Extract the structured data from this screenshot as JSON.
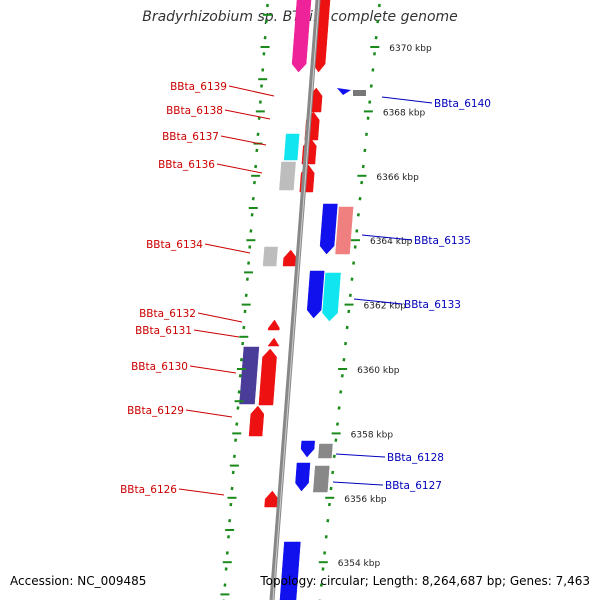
{
  "title": "Bradyrhizobium sp. BTAi1, complete genome",
  "accession": "Accession: NC_009485",
  "summary": "Topology: circular; Length: 8,264,687 bp; Genes: 7,463",
  "colors": {
    "axis": "#888888",
    "tick": "#1a8a1a",
    "red": "#ee1111",
    "magenta": "#ee2299",
    "cyan": "#11e6f0",
    "blue": "#1111ee",
    "gray": "#888888",
    "lightgray": "#bdbdbd",
    "navy": "#4a3d99",
    "pink": "#f08080",
    "label_red": "#cc0000",
    "label_blue": "#0000bb"
  },
  "scale_labels": [
    {
      "text": "6370 kbp",
      "kbp": 6370
    },
    {
      "text": "6368 kbp",
      "kbp": 6368
    },
    {
      "text": "6366 kbp",
      "kbp": 6366
    },
    {
      "text": "6364 kbp",
      "kbp": 6364
    },
    {
      "text": "6362 kbp",
      "kbp": 6362
    },
    {
      "text": "6360 kbp",
      "kbp": 6360
    },
    {
      "text": "6358 kbp",
      "kbp": 6358
    },
    {
      "text": "6356 kbp",
      "kbp": 6356
    },
    {
      "text": "6354 kbp",
      "kbp": 6354
    }
  ],
  "gene_labels": [
    {
      "text": "BBta_6139",
      "side": "left",
      "color": "red"
    },
    {
      "text": "BBta_6138",
      "side": "left",
      "color": "red"
    },
    {
      "text": "BBta_6137",
      "side": "left",
      "color": "red"
    },
    {
      "text": "BBta_6136",
      "side": "left",
      "color": "red"
    },
    {
      "text": "BBta_6134",
      "side": "left",
      "color": "red"
    },
    {
      "text": "BBta_6132",
      "side": "left",
      "color": "red"
    },
    {
      "text": "BBta_6131",
      "side": "left",
      "color": "red"
    },
    {
      "text": "BBta_6130",
      "side": "left",
      "color": "red"
    },
    {
      "text": "BBta_6129",
      "side": "left",
      "color": "red"
    },
    {
      "text": "BBta_6126",
      "side": "left",
      "color": "red"
    },
    {
      "text": "BBta_6140",
      "side": "right",
      "color": "blue"
    },
    {
      "text": "BBta_6135",
      "side": "right",
      "color": "blue"
    },
    {
      "text": "BBta_6133",
      "side": "right",
      "color": "blue"
    },
    {
      "text": "BBta_6128",
      "side": "right",
      "color": "blue"
    },
    {
      "text": "BBta_6127",
      "side": "right",
      "color": "blue"
    }
  ]
}
